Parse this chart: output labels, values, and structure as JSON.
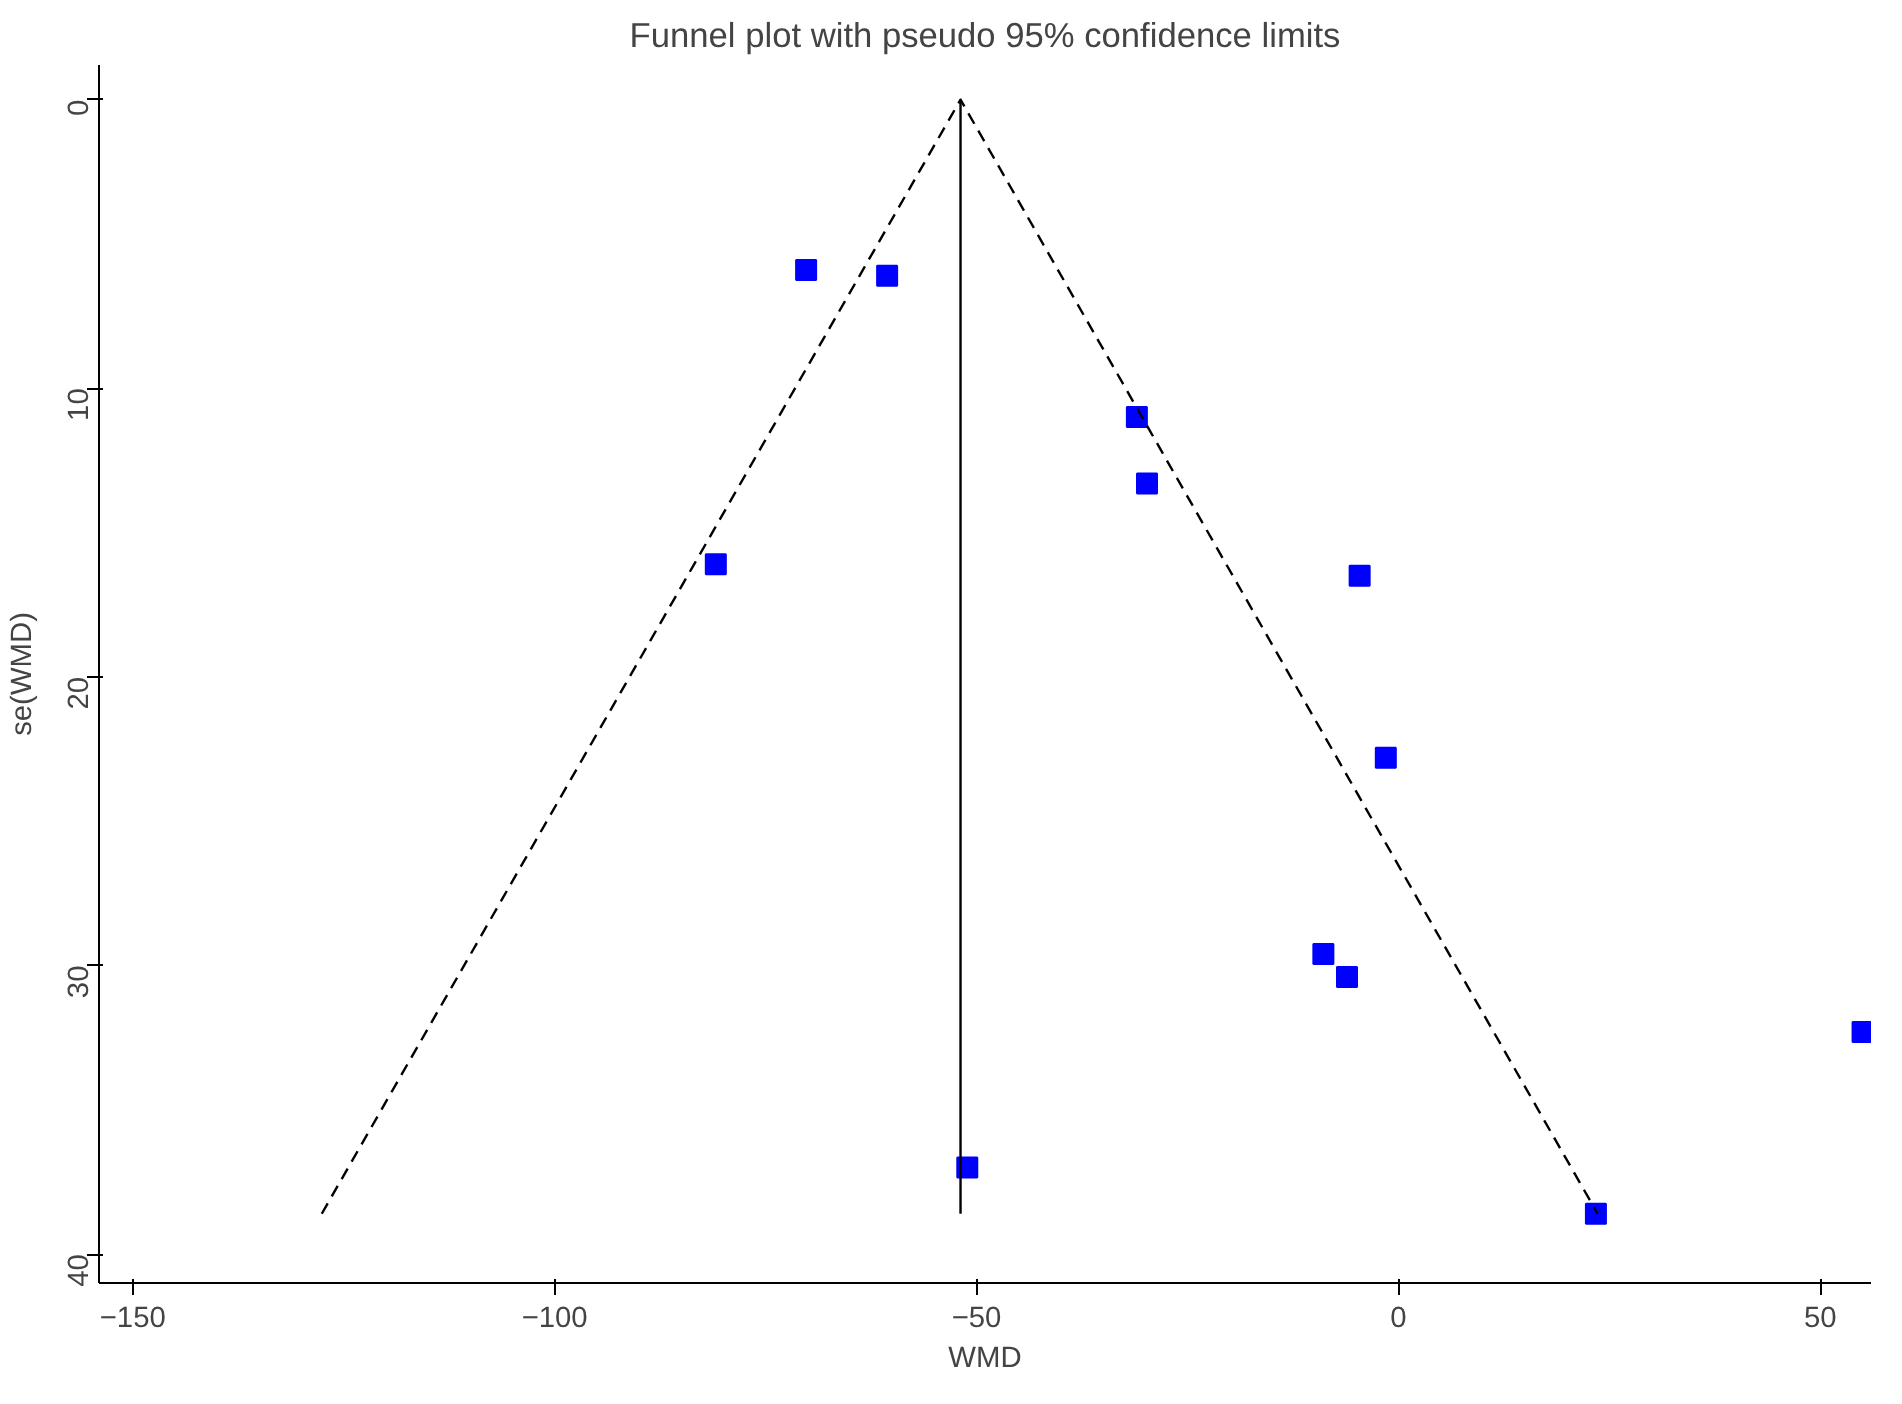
{
  "chart_data": {
    "type": "scatter",
    "title": "Funnel plot with pseudo 95% confidence limits",
    "xlabel": "WMD",
    "ylabel": "se(WMD)",
    "xlim": [
      -154,
      56
    ],
    "ylim": [
      41,
      -1.2
    ],
    "xticks": [
      -150,
      -100,
      -50,
      0,
      50
    ],
    "yticks": [
      0,
      10,
      20,
      30,
      40
    ],
    "grid": false,
    "series": [
      {
        "color": "#0000ff",
        "marker": "square",
        "x": [
          -70.2,
          -60.6,
          -31.0,
          -29.8,
          -80.9,
          -4.6,
          -1.5,
          -8.9,
          -6.1,
          55.0,
          -51.1,
          23.4
        ],
        "values": [
          5.9,
          6.1,
          11.0,
          13.3,
          16.1,
          16.5,
          22.8,
          29.6,
          30.4,
          32.3,
          37.0,
          38.6
        ]
      },
      {
        "type": "line",
        "color": "#000000",
        "line_style": "dashed",
        "x": [
          -127.6,
          -51.9,
          23.6
        ],
        "values": [
          38.6,
          0,
          38.6
        ]
      },
      {
        "type": "line",
        "color": "#000000",
        "line_style": "solid",
        "x": [
          -51.9,
          -51.9
        ],
        "values": [
          0,
          38.6
        ]
      }
    ]
  }
}
